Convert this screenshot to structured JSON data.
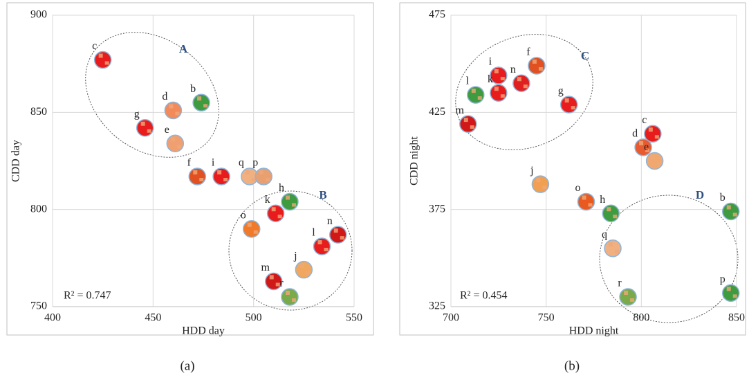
{
  "chart_data": [
    {
      "type": "scatter",
      "caption": "(a)",
      "x_label": "HDD day",
      "y_label": "CDD day",
      "r2_text": "R² = 0.747",
      "xlim": [
        400,
        550
      ],
      "xticks": [
        400,
        450,
        500,
        550
      ],
      "ylim": [
        750,
        900
      ],
      "yticks": [
        750,
        800,
        850,
        900
      ],
      "grid": true,
      "annotations": [
        "A",
        "B"
      ],
      "labels": [
        "c",
        "g",
        "d",
        "b",
        "e",
        "f",
        "i",
        "q",
        "p",
        "h",
        "k",
        "o",
        "n",
        "l",
        "j",
        "m",
        "r"
      ],
      "x": [
        425,
        446,
        460,
        474,
        461,
        472,
        484,
        498,
        505,
        518,
        511,
        499,
        542,
        534,
        525,
        510,
        518
      ],
      "values": [
        877,
        842,
        851,
        855,
        834,
        817,
        817,
        817,
        817,
        804,
        798,
        790,
        787,
        781,
        769,
        763,
        755
      ],
      "colors": [
        "#e81c1c",
        "#e81c1c",
        "#f28a5a",
        "#3f9b3f",
        "#f0a070",
        "#e05020",
        "#e81c1c",
        "#f0b080",
        "#e8a070",
        "#3f9b3f",
        "#e81c1c",
        "#f07a2a",
        "#d01818",
        "#e81c1c",
        "#f0a860",
        "#d01818",
        "#7aaa4a"
      ]
    },
    {
      "type": "scatter",
      "caption": "(b)",
      "x_label": "HDD night",
      "y_label": "CDD night",
      "r2_text": "R² = 0.454",
      "xlim": [
        700,
        850
      ],
      "xticks": [
        700,
        750,
        800,
        850
      ],
      "ylim": [
        325,
        475
      ],
      "yticks": [
        325,
        375,
        425,
        475
      ],
      "grid": true,
      "annotations": [
        "C",
        "D"
      ],
      "labels": [
        "f",
        "i",
        "n",
        "l",
        "k",
        "g",
        "m",
        "c",
        "d",
        "e",
        "j",
        "o",
        "h",
        "b",
        "q",
        "r",
        "p"
      ],
      "x": [
        745,
        725,
        737,
        713,
        725,
        762,
        709,
        806,
        801,
        807,
        747,
        771,
        784,
        847,
        785,
        793,
        847
      ],
      "values": [
        449,
        444,
        440,
        434,
        435,
        429,
        419,
        414,
        407,
        400,
        388,
        379,
        373,
        374,
        355,
        330,
        332
      ],
      "colors": [
        "#e05020",
        "#e81c1c",
        "#e02020",
        "#3f9b3f",
        "#e81c1c",
        "#e81c1c",
        "#d01818",
        "#e81c1c",
        "#e85a30",
        "#f0a870",
        "#f0a050",
        "#e85a20",
        "#3f9b3f",
        "#3f9b3f",
        "#f0b080",
        "#7aaa4a",
        "#3f9b3f"
      ]
    }
  ]
}
